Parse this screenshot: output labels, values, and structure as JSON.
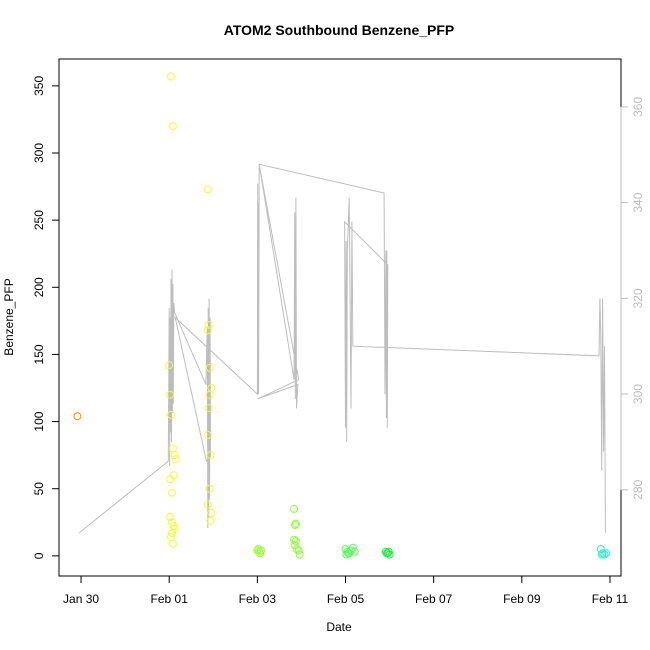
{
  "chart_data": {
    "type": "scatter",
    "title": "ATOM2 Southbound Benzene_PFP",
    "xlabel": "Date",
    "ylabel": "Benzene_PFP",
    "x_ticks": [
      "Jan 30",
      "Feb 01",
      "Feb 03",
      "Feb 05",
      "Feb 07",
      "Feb 09",
      "Feb 11"
    ],
    "xlim": [
      "2017-01-29 12:00",
      "2017-02-11 06:00"
    ],
    "ylim": [
      -15,
      370
    ],
    "y_ticks": [
      0,
      50,
      100,
      150,
      200,
      250,
      300,
      350
    ],
    "y2lim": [
      262,
      370
    ],
    "y2_ticks": [
      280,
      300,
      320,
      340,
      360
    ],
    "grid": false,
    "legend": "none",
    "points": [
      {
        "x": "2017-01-29 22:00",
        "y": 104,
        "color": "#ff8c00"
      },
      {
        "x": "2017-02-01 01:00",
        "y": 357,
        "color": "#eeff33"
      },
      {
        "x": "2017-02-01 02:00",
        "y": 320,
        "color": "#eeff33"
      },
      {
        "x": "2017-02-01 00:00",
        "y": 142,
        "color": "#eeff33"
      },
      {
        "x": "2017-02-01 00:30",
        "y": 120,
        "color": "#eeff33"
      },
      {
        "x": "2017-02-01 01:00",
        "y": 105,
        "color": "#eeff33"
      },
      {
        "x": "2017-02-01 02:00",
        "y": 80,
        "color": "#eeff33"
      },
      {
        "x": "2017-02-01 03:00",
        "y": 75,
        "color": "#eeff33"
      },
      {
        "x": "2017-02-01 03:30",
        "y": 72,
        "color": "#eeff33"
      },
      {
        "x": "2017-02-01 02:30",
        "y": 60,
        "color": "#eeff33"
      },
      {
        "x": "2017-02-01 00:30",
        "y": 57,
        "color": "#eeff33"
      },
      {
        "x": "2017-02-01 01:30",
        "y": 47,
        "color": "#eeff33"
      },
      {
        "x": "2017-02-01 00:30",
        "y": 29,
        "color": "#eeff33"
      },
      {
        "x": "2017-02-01 01:30",
        "y": 25,
        "color": "#eeff33"
      },
      {
        "x": "2017-02-01 02:30",
        "y": 22,
        "color": "#eeff33"
      },
      {
        "x": "2017-02-01 03:00",
        "y": 20,
        "color": "#eeff33"
      },
      {
        "x": "2017-02-01 01:30",
        "y": 17,
        "color": "#eeff33"
      },
      {
        "x": "2017-02-01 01:00",
        "y": 14,
        "color": "#eeff33"
      },
      {
        "x": "2017-02-01 02:00",
        "y": 9,
        "color": "#eeff33"
      },
      {
        "x": "2017-02-01 21:00",
        "y": 273,
        "color": "#eeff33"
      },
      {
        "x": "2017-02-01 21:30",
        "y": 172,
        "color": "#eeff33"
      },
      {
        "x": "2017-02-01 21:00",
        "y": 168,
        "color": "#eeff33"
      },
      {
        "x": "2017-02-01 22:00",
        "y": 140,
        "color": "#eeff33"
      },
      {
        "x": "2017-02-01 23:00",
        "y": 125,
        "color": "#eeff33"
      },
      {
        "x": "2017-02-01 22:00",
        "y": 120,
        "color": "#eeff33"
      },
      {
        "x": "2017-02-01 21:30",
        "y": 110,
        "color": "#eeff33"
      },
      {
        "x": "2017-02-01 21:00",
        "y": 90,
        "color": "#eeff33"
      },
      {
        "x": "2017-02-01 22:30",
        "y": 75,
        "color": "#eeff33"
      },
      {
        "x": "2017-02-01 22:00",
        "y": 50,
        "color": "#eeff33"
      },
      {
        "x": "2017-02-01 21:00",
        "y": 38,
        "color": "#eeff33"
      },
      {
        "x": "2017-02-01 23:00",
        "y": 32,
        "color": "#eeff33"
      },
      {
        "x": "2017-02-01 22:30",
        "y": 26,
        "color": "#eeff33"
      },
      {
        "x": "2017-02-03 00:00",
        "y": 4,
        "color": "#99ff33"
      },
      {
        "x": "2017-02-03 01:00",
        "y": 3,
        "color": "#99ff33"
      },
      {
        "x": "2017-02-03 02:00",
        "y": 4,
        "color": "#99ff33"
      },
      {
        "x": "2017-02-03 00:30",
        "y": 5,
        "color": "#99ff33"
      },
      {
        "x": "2017-02-03 01:30",
        "y": 2,
        "color": "#99ff33"
      },
      {
        "x": "2017-02-03 20:00",
        "y": 35,
        "color": "#88ff33"
      },
      {
        "x": "2017-02-03 21:00",
        "y": 24,
        "color": "#88ff33"
      },
      {
        "x": "2017-02-03 20:30",
        "y": 23,
        "color": "#88ff33"
      },
      {
        "x": "2017-02-03 20:00",
        "y": 12,
        "color": "#88ff33"
      },
      {
        "x": "2017-02-03 21:00",
        "y": 11,
        "color": "#88ff33"
      },
      {
        "x": "2017-02-03 20:30",
        "y": 8,
        "color": "#88ff33"
      },
      {
        "x": "2017-02-03 21:30",
        "y": 5,
        "color": "#88ff33"
      },
      {
        "x": "2017-02-03 22:30",
        "y": 4,
        "color": "#88ff33"
      },
      {
        "x": "2017-02-03 23:00",
        "y": 1,
        "color": "#88ff33"
      },
      {
        "x": "2017-02-05 00:00",
        "y": 5,
        "color": "#55ff55"
      },
      {
        "x": "2017-02-05 01:00",
        "y": 3,
        "color": "#55ff55"
      },
      {
        "x": "2017-02-05 02:00",
        "y": 2,
        "color": "#55ff55"
      },
      {
        "x": "2017-02-05 03:00",
        "y": 4,
        "color": "#55ff55"
      },
      {
        "x": "2017-02-05 04:00",
        "y": 6,
        "color": "#55ff55"
      },
      {
        "x": "2017-02-05 05:00",
        "y": 3,
        "color": "#55ff55"
      },
      {
        "x": "2017-02-05 00:30",
        "y": 1,
        "color": "#55ff55"
      },
      {
        "x": "2017-02-05 01:30",
        "y": 2,
        "color": "#55ff55"
      },
      {
        "x": "2017-02-05 22:00",
        "y": 3,
        "color": "#22ee44"
      },
      {
        "x": "2017-02-05 23:00",
        "y": 2,
        "color": "#22ee44"
      },
      {
        "x": "2017-02-06 00:00",
        "y": 1,
        "color": "#22ee44"
      },
      {
        "x": "2017-02-05 22:30",
        "y": 2,
        "color": "#22ee44"
      },
      {
        "x": "2017-02-05 23:30",
        "y": 3,
        "color": "#22ee44"
      },
      {
        "x": "2017-02-10 19:00",
        "y": 5,
        "color": "#33eecc"
      },
      {
        "x": "2017-02-10 20:00",
        "y": 2,
        "color": "#33eecc"
      },
      {
        "x": "2017-02-10 21:00",
        "y": 1,
        "color": "#33eecc"
      },
      {
        "x": "2017-02-10 22:00",
        "y": 2,
        "color": "#33eecc"
      },
      {
        "x": "2017-02-10 19:30",
        "y": 1,
        "color": "#33eecc"
      }
    ],
    "line_series": {
      "axis": "right",
      "color": "#bdbdbd",
      "points": [
        [
          "2017-01-29 23:00",
          271
        ],
        [
          "2017-01-31 23:30",
          286
        ],
        [
          "2017-02-01 00:00",
          318
        ],
        [
          "2017-02-01 00:15",
          285
        ],
        [
          "2017-02-01 00:30",
          316
        ],
        [
          "2017-02-01 00:45",
          292
        ],
        [
          "2017-02-01 01:00",
          324
        ],
        [
          "2017-02-01 01:15",
          290
        ],
        [
          "2017-02-01 01:30",
          326
        ],
        [
          "2017-02-01 01:45",
          296
        ],
        [
          "2017-02-01 02:00",
          323
        ],
        [
          "2017-02-01 02:15",
          298
        ],
        [
          "2017-02-01 02:30",
          319
        ],
        [
          "2017-02-01 03:00",
          317
        ],
        [
          "2017-02-01 20:00",
          302
        ],
        [
          "2017-02-01 20:30",
          310
        ],
        [
          "2017-02-01 20:45",
          314
        ],
        [
          "2017-02-01 21:00",
          272
        ],
        [
          "2017-02-01 21:15",
          318
        ],
        [
          "2017-02-01 21:30",
          274
        ],
        [
          "2017-02-01 21:45",
          320
        ],
        [
          "2017-02-01 22:00",
          278
        ],
        [
          "2017-02-01 22:15",
          316
        ],
        [
          "2017-02-01 22:30",
          287
        ],
        [
          "2017-02-01 20:15",
          286
        ],
        [
          "2017-02-01 03:15",
          316
        ],
        [
          "2017-02-03 00:00",
          300
        ],
        [
          "2017-02-03 00:10",
          344
        ],
        [
          "2017-02-03 00:20",
          300
        ],
        [
          "2017-02-03 00:30",
          340
        ],
        [
          "2017-02-03 00:40",
          300
        ],
        [
          "2017-02-03 01:00",
          348
        ],
        [
          "2017-02-03 20:00",
          303
        ],
        [
          "2017-02-03 20:20",
          338
        ],
        [
          "2017-02-03 20:40",
          299
        ],
        [
          "2017-02-03 21:00",
          341
        ],
        [
          "2017-02-03 21:20",
          297
        ],
        [
          "2017-02-03 22:00",
          302
        ],
        [
          "2017-02-03 00:05",
          299
        ],
        [
          "2017-02-03 22:30",
          303
        ],
        [
          "2017-02-03 01:00",
          348
        ],
        [
          "2017-02-05 21:00",
          342
        ],
        [
          "2017-02-05 21:30",
          300
        ],
        [
          "2017-02-05 22:00",
          330
        ],
        [
          "2017-02-05 22:15",
          295
        ],
        [
          "2017-02-05 22:30",
          330
        ],
        [
          "2017-02-05 22:45",
          293
        ],
        [
          "2017-02-05 23:00",
          327
        ],
        [
          "2017-02-04 23:30",
          336
        ],
        [
          "2017-02-05 00:00",
          293
        ],
        [
          "2017-02-05 00:20",
          332
        ],
        [
          "2017-02-05 00:40",
          290
        ],
        [
          "2017-02-05 01:00",
          330
        ],
        [
          "2017-02-05 02:00",
          341
        ],
        [
          "2017-02-05 03:00",
          297
        ],
        [
          "2017-02-05 03:30",
          336
        ],
        [
          "2017-02-05 04:00",
          310
        ],
        [
          "2017-02-10 18:00",
          308
        ],
        [
          "2017-02-10 18:30",
          320
        ],
        [
          "2017-02-10 19:00",
          312
        ],
        [
          "2017-02-10 19:30",
          284
        ],
        [
          "2017-02-10 20:00",
          320
        ],
        [
          "2017-02-10 20:30",
          288
        ],
        [
          "2017-02-10 21:00",
          310
        ],
        [
          "2017-02-10 21:30",
          271
        ]
      ]
    }
  }
}
